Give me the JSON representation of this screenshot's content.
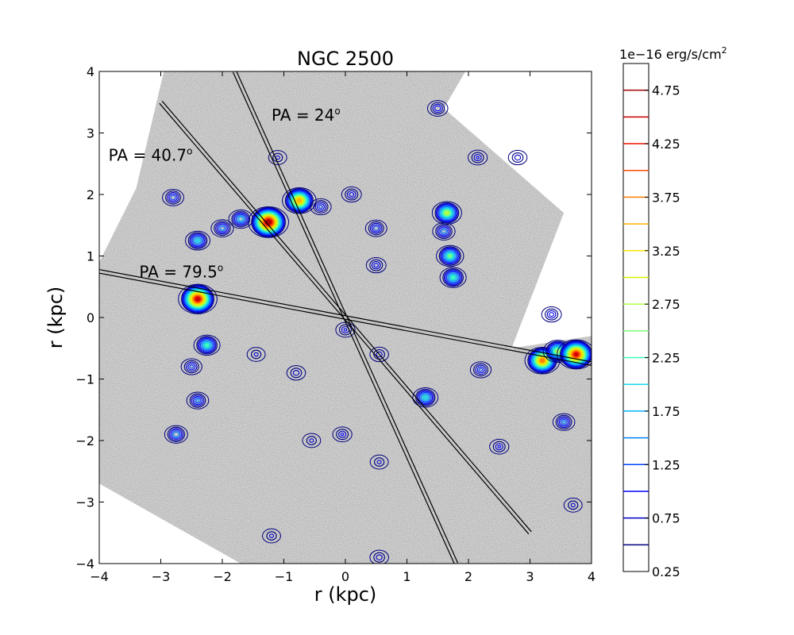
{
  "chart_data": {
    "type": "image",
    "title": "NGC 2500",
    "xlabel": "r (kpc)",
    "ylabel": "r (kpc)",
    "xlim": [
      -4,
      4
    ],
    "ylim": [
      -4,
      4
    ],
    "xticks": [
      -4,
      -3,
      -2,
      -1,
      0,
      1,
      2,
      3,
      4
    ],
    "yticks": [
      -4,
      -3,
      -2,
      -1,
      0,
      1,
      2,
      3,
      4
    ],
    "xtick_labels": [
      "−4",
      "−3",
      "−2",
      "−1",
      "0",
      "1",
      "2",
      "3",
      "4"
    ],
    "ytick_labels": [
      "−4",
      "−3",
      "−2",
      "−1",
      "0",
      "1",
      "2",
      "3",
      "4"
    ],
    "colorbar": {
      "label": "1e−16 erg/s/cm",
      "label_superscript": "2",
      "range": [
        0.25,
        5.0
      ],
      "levels": [
        0.5,
        0.75,
        1.0,
        1.25,
        1.5,
        1.75,
        2.0,
        2.25,
        2.5,
        2.75,
        3.0,
        3.25,
        3.5,
        3.75,
        4.0,
        4.25,
        4.5,
        4.75
      ],
      "level_colors": [
        "#00007f",
        "#0000c8",
        "#0000ff",
        "#0040ff",
        "#0080ff",
        "#00b0ff",
        "#10d8e6",
        "#40ffb8",
        "#7dff7a",
        "#b0ff46",
        "#d8f000",
        "#ffe400",
        "#ffb000",
        "#ff7c00",
        "#ff4800",
        "#f21000",
        "#c80000",
        "#a00000"
      ],
      "tick_labels": [
        "0.25",
        "0.75",
        "1.25",
        "1.75",
        "2.25",
        "2.75",
        "3.25",
        "3.75",
        "4.25",
        "4.75"
      ],
      "tick_values": [
        0.25,
        0.75,
        1.25,
        1.75,
        2.25,
        2.75,
        3.25,
        3.75,
        4.25,
        4.75
      ]
    },
    "slits": [
      {
        "label": "PA = 24°",
        "pa": 24,
        "from": [
          -1.8,
          4.0
        ],
        "to": [
          1.8,
          -4.0
        ]
      },
      {
        "label": "PA = 40.7°",
        "pa": 40.7,
        "from": [
          -3.0,
          3.5
        ],
        "to": [
          3.0,
          -3.5
        ]
      },
      {
        "label": "PA = 79.5°",
        "pa": 79.5,
        "from": [
          -4.0,
          0.75
        ],
        "to": [
          4.0,
          -0.75
        ]
      }
    ],
    "slit_labels": [
      {
        "text": "PA = 24",
        "x": -1.2,
        "y": 3.2
      },
      {
        "text": "PA = 40.7",
        "x": -3.85,
        "y": 2.55
      },
      {
        "text": "PA = 79.5",
        "x": -3.35,
        "y": 0.65
      }
    ],
    "hii_regions": [
      {
        "x": -1.25,
        "y": 1.55,
        "peak": 4.9
      },
      {
        "x": -0.75,
        "y": 1.9,
        "peak": 3.7
      },
      {
        "x": -2.4,
        "y": 0.3,
        "peak": 4.6
      },
      {
        "x": -2.25,
        "y": -0.45,
        "peak": 2.3
      },
      {
        "x": -2.5,
        "y": -0.8,
        "peak": 1.3
      },
      {
        "x": -2.4,
        "y": -1.35,
        "peak": 1.5
      },
      {
        "x": -2.75,
        "y": -1.9,
        "peak": 1.7
      },
      {
        "x": -2.4,
        "y": 1.25,
        "peak": 2.0
      },
      {
        "x": -2.0,
        "y": 1.45,
        "peak": 1.6
      },
      {
        "x": -1.7,
        "y": 1.6,
        "peak": 1.9
      },
      {
        "x": -2.8,
        "y": 1.95,
        "peak": 1.4
      },
      {
        "x": 1.3,
        "y": -1.3,
        "peak": 2.1
      },
      {
        "x": 1.65,
        "y": 1.7,
        "peak": 2.9
      },
      {
        "x": 1.7,
        "y": 1.0,
        "peak": 2.5
      },
      {
        "x": 1.75,
        "y": 0.65,
        "peak": 2.3
      },
      {
        "x": 1.6,
        "y": 1.4,
        "peak": 1.6
      },
      {
        "x": 1.5,
        "y": 3.4,
        "peak": 1.2
      },
      {
        "x": 0.5,
        "y": 1.45,
        "peak": 1.4
      },
      {
        "x": 0.5,
        "y": 0.85,
        "peak": 1.1
      },
      {
        "x": 2.2,
        "y": -0.85,
        "peak": 1.3
      },
      {
        "x": 3.2,
        "y": -0.7,
        "peak": 3.9
      },
      {
        "x": 3.45,
        "y": -0.55,
        "peak": 2.8
      },
      {
        "x": 3.75,
        "y": -0.6,
        "peak": 4.5
      },
      {
        "x": 3.55,
        "y": -1.7,
        "peak": 1.5
      },
      {
        "x": 0.0,
        "y": -0.2,
        "peak": 1.0
      },
      {
        "x": 0.55,
        "y": -0.6,
        "peak": 0.9
      },
      {
        "x": -0.8,
        "y": -0.9,
        "peak": 0.9
      },
      {
        "x": -0.05,
        "y": -1.9,
        "peak": 1.0
      },
      {
        "x": 0.55,
        "y": -2.35,
        "peak": 0.8
      },
      {
        "x": -1.45,
        "y": -0.6,
        "peak": 0.8
      },
      {
        "x": 0.55,
        "y": -3.9,
        "peak": 0.9
      },
      {
        "x": -1.2,
        "y": -3.55,
        "peak": 0.8
      },
      {
        "x": 2.15,
        "y": 2.6,
        "peak": 1.0
      },
      {
        "x": 2.8,
        "y": 2.6,
        "peak": 0.9
      },
      {
        "x": -1.1,
        "y": 2.6,
        "peak": 0.8
      },
      {
        "x": 0.1,
        "y": 2.0,
        "peak": 1.1
      },
      {
        "x": -0.4,
        "y": 1.8,
        "peak": 1.3
      },
      {
        "x": 3.35,
        "y": 0.05,
        "peak": 1.1
      },
      {
        "x": 2.5,
        "y": -2.1,
        "peak": 1.0
      },
      {
        "x": 3.7,
        "y": -3.05,
        "peak": 0.8
      },
      {
        "x": -0.55,
        "y": -2.0,
        "peak": 0.8
      }
    ],
    "image_footprint": [
      [
        -2.95,
        4.0
      ],
      [
        1.95,
        4.0
      ],
      [
        1.6,
        3.4
      ],
      [
        3.55,
        1.7
      ],
      [
        2.7,
        -0.5
      ],
      [
        4.0,
        -0.3
      ],
      [
        4.0,
        -4.0
      ],
      [
        -1.7,
        -4.0
      ],
      [
        -4.0,
        -2.7
      ],
      [
        -4.0,
        0.9
      ],
      [
        -3.4,
        2.1
      ]
    ]
  }
}
